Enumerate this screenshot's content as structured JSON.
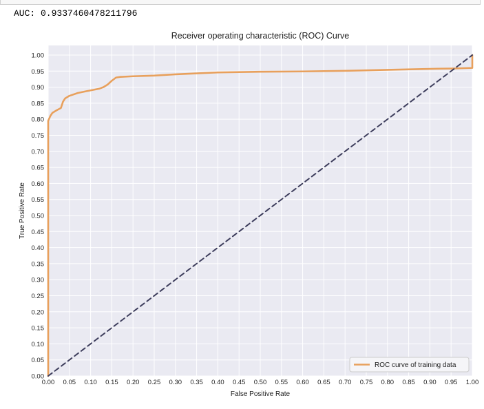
{
  "output": {
    "auc_text": "AUC: 0.9337460478211796"
  },
  "colors": {
    "plot_bg": "#eaeaf2",
    "grid": "#ffffff",
    "roc": "#e8a05c",
    "diagonal": "#3d3d5c"
  },
  "chart_data": {
    "type": "line",
    "title": "Receiver operating characteristic (ROC) Curve",
    "xlabel": "False Positive Rate",
    "ylabel": "True Positive Rate",
    "xlim": [
      0,
      1
    ],
    "ylim": [
      0,
      1.03
    ],
    "xticks": [
      "0.00",
      "0.05",
      "0.10",
      "0.15",
      "0.20",
      "0.25",
      "0.30",
      "0.35",
      "0.40",
      "0.45",
      "0.50",
      "0.55",
      "0.60",
      "0.65",
      "0.70",
      "0.75",
      "0.80",
      "0.85",
      "0.90",
      "0.95",
      "1.00"
    ],
    "yticks": [
      "0.00",
      "0.05",
      "0.10",
      "0.15",
      "0.20",
      "0.25",
      "0.30",
      "0.35",
      "0.40",
      "0.45",
      "0.50",
      "0.55",
      "0.60",
      "0.65",
      "0.70",
      "0.75",
      "0.80",
      "0.85",
      "0.90",
      "0.95",
      "1.00"
    ],
    "grid": true,
    "legend_position": "lower-right",
    "series": [
      {
        "name": "ROC curve of training data",
        "style": "solid",
        "x": [
          0.0,
          0.0,
          0.005,
          0.01,
          0.02,
          0.03,
          0.035,
          0.04,
          0.05,
          0.07,
          0.1,
          0.12,
          0.13,
          0.14,
          0.15,
          0.16,
          0.17,
          0.2,
          0.25,
          0.3,
          0.35,
          0.4,
          0.5,
          0.6,
          0.7,
          0.8,
          0.9,
          0.95,
          1.0,
          1.0
        ],
        "y": [
          0.0,
          0.795,
          0.81,
          0.82,
          0.828,
          0.835,
          0.855,
          0.865,
          0.873,
          0.882,
          0.89,
          0.895,
          0.9,
          0.908,
          0.92,
          0.93,
          0.932,
          0.934,
          0.936,
          0.94,
          0.943,
          0.946,
          0.948,
          0.949,
          0.951,
          0.954,
          0.957,
          0.958,
          0.96,
          1.0
        ]
      },
      {
        "style": "dashed",
        "x": [
          0.0,
          1.0
        ],
        "y": [
          0.0,
          1.0
        ]
      }
    ]
  }
}
